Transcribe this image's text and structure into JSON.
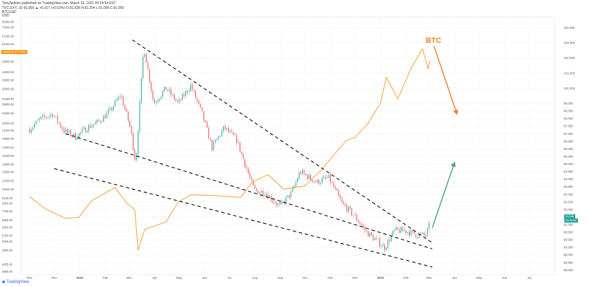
{
  "header": {
    "publisher": "TonySpilotro published on TradingView.com, March 02, 2021 09:24:54 EST",
    "symbol_line": "TVC:DXY, 1D  91.050  ▲ +0.017 (+0.02%)  O:91.028  H:91.204  L:91.000  C:91.050",
    "left_axis_header": "BTCUSD",
    "left_axis_unit": "USD"
  },
  "tradingview_logo": "TradingView",
  "btc_price_badge": "49928.51 BTCUSD",
  "dxy_price_badge": "91.050",
  "dxy_time_badge": "09:35:06",
  "colors": {
    "up": "#26a69a",
    "down": "#ef5350",
    "btc_line": "#f7931a",
    "trendline": "#000000",
    "arrow_orange": "#f0802d",
    "arrow_green": "#4fa08b",
    "grid": "#f0f3fa"
  },
  "annotation_label": "BTC",
  "chart_data": {
    "type": "line",
    "title": "",
    "xlabel": "",
    "ylabel": "",
    "x_ticks": [
      "Nov",
      "Dec",
      "2020",
      "Feb",
      "Mar",
      "Apr",
      "May",
      "Jun",
      "Jul",
      "Aug",
      "Sep",
      "Oct",
      "Nov",
      "Dec",
      "2021",
      "Feb",
      "Mar",
      "Apr",
      "May",
      "Jun",
      "Jul"
    ],
    "left_axis": {
      "series": "BTCUSD",
      "scale": "log",
      "ylim": [
        3550,
        85000
      ],
      "tick_labels": [
        "80000.00",
        "75000.00",
        "67000.00",
        "61000.00",
        "55000.00",
        "49000.00",
        "43000.00",
        "39000.00",
        "35000.00",
        "31000.00",
        "29000.00",
        "26000.00",
        "23000.00",
        "21000.00",
        "19000.00",
        "17000.00",
        "15400.00",
        "13800.00",
        "12600.00",
        "11300.00",
        "10150.00",
        "9100.00",
        "8550.00",
        "7750.00",
        "6950.00",
        "6350.00",
        "5750.00",
        "5350.00",
        "4800.00",
        "4025.00",
        "3685.00"
      ]
    },
    "right_axis": {
      "series": "DXY",
      "scale": "linear",
      "ylim": [
        87.7,
        104.7
      ],
      "tick_labels": [
        "104.000",
        "103.000",
        "102.000",
        "101.000",
        "100.000",
        "99.000",
        "98.500",
        "98.000",
        "97.500",
        "97.000",
        "96.500",
        "96.000",
        "95.500",
        "95.000",
        "94.500",
        "94.000",
        "93.500",
        "93.000",
        "92.500",
        "92.000",
        "91.500",
        "91.000",
        "90.500",
        "90.000",
        "89.500",
        "89.000",
        "88.500",
        "88.000"
      ]
    },
    "series": [
      {
        "name": "TVC:DXY",
        "kind": "candles",
        "axis": "right",
        "points": [
          [
            "2019-11-01",
            97.3
          ],
          [
            "2019-11-15",
            98.0
          ],
          [
            "2019-11-29",
            98.3
          ],
          [
            "2019-12-13",
            97.2
          ],
          [
            "2019-12-27",
            96.8
          ],
          [
            "2020-01-10",
            97.4
          ],
          [
            "2020-01-24",
            97.8
          ],
          [
            "2020-02-07",
            98.5
          ],
          [
            "2020-02-20",
            99.6
          ],
          [
            "2020-03-03",
            97.3
          ],
          [
            "2020-03-09",
            95.0
          ],
          [
            "2020-03-19",
            102.8
          ],
          [
            "2020-03-31",
            99.0
          ],
          [
            "2020-04-15",
            100.0
          ],
          [
            "2020-04-30",
            99.0
          ],
          [
            "2020-05-15",
            100.2
          ],
          [
            "2020-05-29",
            98.3
          ],
          [
            "2020-06-10",
            96.1
          ],
          [
            "2020-06-25",
            97.4
          ],
          [
            "2020-07-10",
            96.6
          ],
          [
            "2020-07-31",
            93.3
          ],
          [
            "2020-08-14",
            93.1
          ],
          [
            "2020-08-31",
            92.2
          ],
          [
            "2020-09-15",
            93.1
          ],
          [
            "2020-09-25",
            94.5
          ],
          [
            "2020-10-15",
            93.8
          ],
          [
            "2020-10-30",
            94.1
          ],
          [
            "2020-11-15",
            92.4
          ],
          [
            "2020-11-30",
            91.6
          ],
          [
            "2020-12-15",
            90.5
          ],
          [
            "2021-01-06",
            89.5
          ],
          [
            "2021-01-18",
            90.6
          ],
          [
            "2021-01-31",
            90.6
          ],
          [
            "2021-02-15",
            90.3
          ],
          [
            "2021-02-25",
            90.3
          ],
          [
            "2021-03-02",
            91.05
          ]
        ]
      },
      {
        "name": "BTCUSD",
        "kind": "line",
        "axis": "left",
        "points": [
          [
            "2019-11-01",
            9300
          ],
          [
            "2019-11-20",
            8000
          ],
          [
            "2019-12-15",
            7100
          ],
          [
            "2019-12-31",
            7200
          ],
          [
            "2020-01-15",
            8800
          ],
          [
            "2020-02-13",
            10400
          ],
          [
            "2020-02-28",
            8500
          ],
          [
            "2020-03-08",
            7900
          ],
          [
            "2020-03-12",
            4800
          ],
          [
            "2020-03-20",
            6200
          ],
          [
            "2020-04-15",
            6800
          ],
          [
            "2020-04-30",
            8700
          ],
          [
            "2020-05-15",
            9500
          ],
          [
            "2020-06-15",
            9400
          ],
          [
            "2020-07-15",
            9200
          ],
          [
            "2020-07-28",
            11000
          ],
          [
            "2020-08-17",
            12200
          ],
          [
            "2020-09-05",
            10200
          ],
          [
            "2020-10-01",
            10600
          ],
          [
            "2020-10-21",
            12900
          ],
          [
            "2020-11-05",
            15500
          ],
          [
            "2020-11-20",
            18500
          ],
          [
            "2020-12-01",
            19300
          ],
          [
            "2020-12-17",
            23000
          ],
          [
            "2021-01-01",
            29500
          ],
          [
            "2021-01-08",
            40500
          ],
          [
            "2021-01-22",
            31000
          ],
          [
            "2021-02-08",
            46000
          ],
          [
            "2021-02-21",
            57500
          ],
          [
            "2021-02-28",
            45000
          ],
          [
            "2021-03-02",
            49928.51
          ]
        ]
      }
    ],
    "annotations": [
      {
        "kind": "trendline",
        "style": "dashed",
        "from": [
          "2020-03-05",
          103.2
        ],
        "to": [
          "2021-03-05",
          89.8
        ]
      },
      {
        "kind": "trendline",
        "style": "dashed",
        "from": [
          "2019-12-15",
          97.0
        ],
        "to": [
          "2021-03-05",
          89.4
        ]
      },
      {
        "kind": "trendline",
        "style": "dashed",
        "from": [
          "2019-12-01",
          94.7
        ],
        "to": [
          "2021-03-05",
          88.2
        ]
      },
      {
        "kind": "arrow",
        "color": "arrow_orange",
        "from": [
          "2021-03-07",
          102.8
        ],
        "to": [
          "2021-04-04",
          98.3
        ]
      },
      {
        "kind": "arrow",
        "color": "arrow_green",
        "from": [
          "2021-03-05",
          90.8
        ],
        "to": [
          "2021-04-01",
          95.1
        ]
      },
      {
        "kind": "text",
        "label": "BTC",
        "at": [
          "2021-02-25",
          103.0
        ]
      }
    ]
  }
}
